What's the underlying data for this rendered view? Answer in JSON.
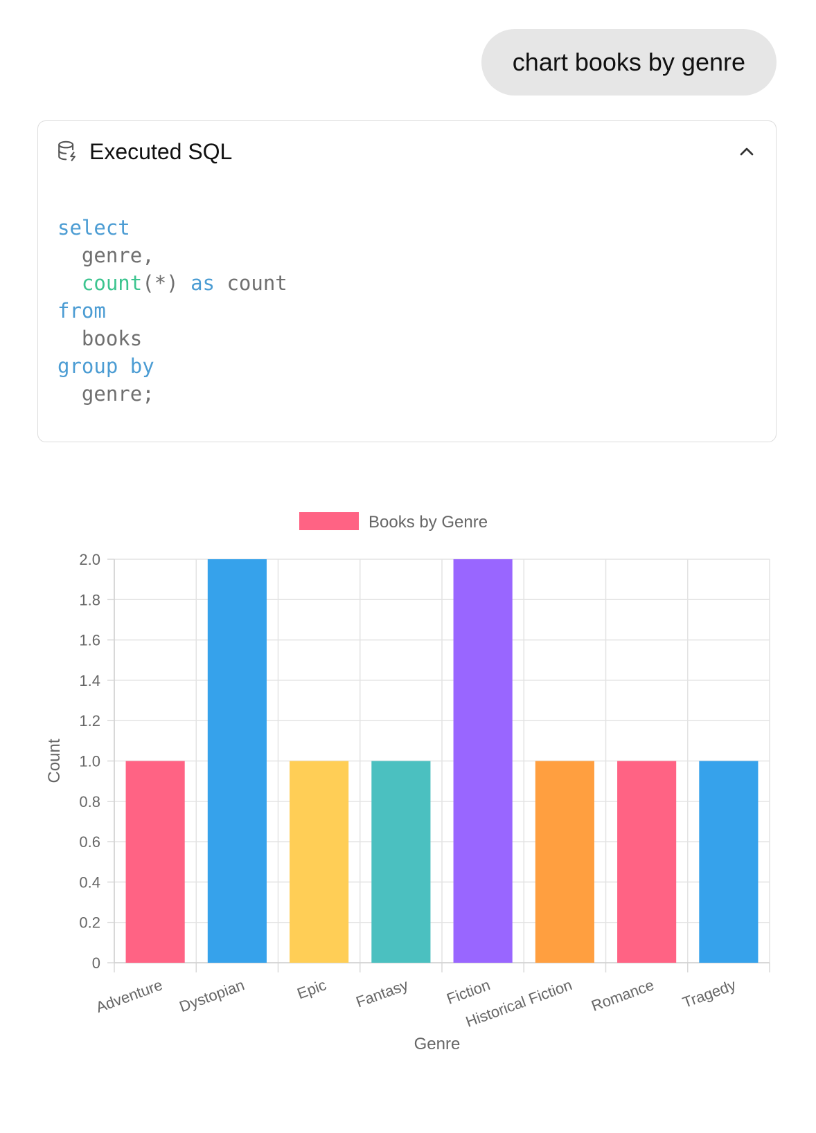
{
  "chat": {
    "user_message": "chart books by genre"
  },
  "sql_card": {
    "title": "Executed SQL",
    "icon": "database-icon",
    "toggle_icon": "chevron-up-icon",
    "lines": [
      {
        "indent": "",
        "tokens": [
          {
            "t": "select",
            "c": "kw"
          }
        ]
      },
      {
        "indent": "  ",
        "tokens": [
          {
            "t": "genre,",
            "c": "id"
          }
        ]
      },
      {
        "indent": "  ",
        "tokens": [
          {
            "t": "count",
            "c": "fn"
          },
          {
            "t": "(*) ",
            "c": "id"
          },
          {
            "t": "as",
            "c": "kw"
          },
          {
            "t": " count",
            "c": "id"
          }
        ]
      },
      {
        "indent": "",
        "tokens": [
          {
            "t": "from",
            "c": "kw"
          }
        ]
      },
      {
        "indent": "  ",
        "tokens": [
          {
            "t": "books",
            "c": "id"
          }
        ]
      },
      {
        "indent": "",
        "tokens": [
          {
            "t": "group by",
            "c": "kw"
          }
        ]
      },
      {
        "indent": "  ",
        "tokens": [
          {
            "t": "genre;",
            "c": "id"
          }
        ]
      }
    ]
  },
  "chart_data": {
    "type": "bar",
    "categories": [
      "Adventure",
      "Dystopian",
      "Epic",
      "Fantasy",
      "Fiction",
      "Historical Fiction",
      "Romance",
      "Tragedy"
    ],
    "series": [
      {
        "name": "Books by Genre",
        "values": [
          1,
          2,
          1,
          1,
          2,
          1,
          1,
          1
        ]
      }
    ],
    "bar_colors": [
      "#ff6384",
      "#36a2eb",
      "#ffce56",
      "#4bc0c0",
      "#9966ff",
      "#ff9f40",
      "#ff6384",
      "#36a2eb"
    ],
    "legend_color": "#ff6384",
    "xlabel": "Genre",
    "ylabel": "Count",
    "ylim": [
      0,
      2
    ],
    "yticks": [
      "0",
      "0.2",
      "0.4",
      "0.6",
      "0.8",
      "1.0",
      "1.2",
      "1.4",
      "1.6",
      "1.8",
      "2.0"
    ],
    "grid": true,
    "legend_position": "top"
  }
}
